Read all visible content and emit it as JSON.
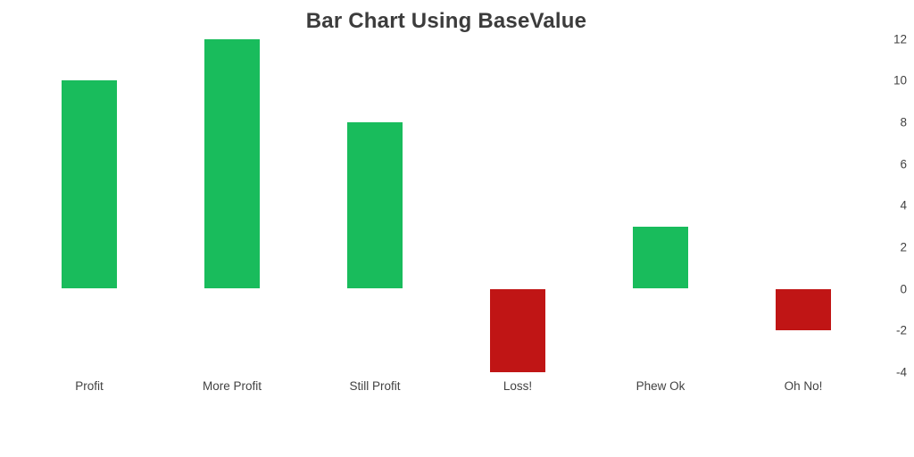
{
  "chart_data": {
    "type": "bar",
    "title": "Bar Chart Using BaseValue",
    "categories": [
      "Profit",
      "More Profit",
      "Still Profit",
      "Loss!",
      "Phew Ok",
      "Oh No!"
    ],
    "values": [
      10,
      12,
      8,
      -4,
      3,
      -2
    ],
    "base_value": 0,
    "xlabel": "",
    "ylabel": "",
    "ylim": [
      -4,
      12
    ],
    "yticks": [
      12,
      10,
      8,
      6,
      4,
      2,
      0,
      -2,
      -4
    ],
    "yaxis_position": "right",
    "grid": false,
    "legend": "none",
    "positive_color": "#19bc5c",
    "negative_color": "#c01515",
    "background_color": "#ffffff",
    "title_color": "#3c3c3c",
    "label_color": "#424242"
  }
}
